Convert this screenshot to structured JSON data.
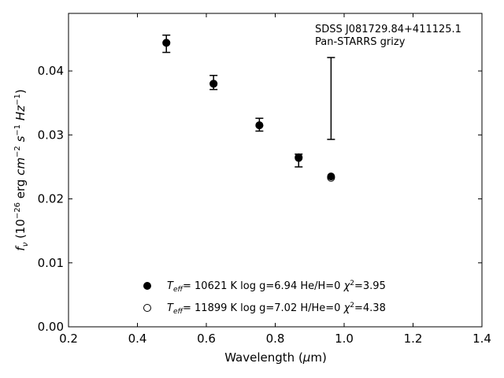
{
  "chart_data": {
    "type": "scatter",
    "title": "",
    "xlabel": "Wavelength (μm)",
    "ylabel": "f_ν (10^−26 erg cm^−2 s^−1 Hz^−1)",
    "xlim": [
      0.2,
      1.4
    ],
    "ylim": [
      0.0,
      0.049
    ],
    "xticks": [
      0.2,
      0.4,
      0.6,
      0.8,
      1.0,
      1.2,
      1.4
    ],
    "xtick_labels": [
      "0.2",
      "0.4",
      "0.6",
      "0.8",
      "1.0",
      "1.2",
      "1.4"
    ],
    "yticks": [
      0.0,
      0.01,
      0.02,
      0.03,
      0.04
    ],
    "ytick_labels": [
      "0.00",
      "0.01",
      "0.02",
      "0.03",
      "0.04"
    ],
    "grid": false,
    "annotation": {
      "line1": "SDSS J081729.84+411125.1",
      "line2": "Pan-STARRS grizy"
    },
    "observed": {
      "x": [
        0.484,
        0.621,
        0.754,
        0.868,
        0.962
      ],
      "y": [
        0.0443,
        0.0382,
        0.0316,
        0.0259,
        0.0357
      ],
      "yerr_low": [
        0.0014,
        0.0011,
        0.001,
        0.0009,
        0.0064
      ],
      "yerr_high": [
        0.0013,
        0.0011,
        0.001,
        0.0011,
        0.0064
      ]
    },
    "series": [
      {
        "name": "T_eff= 10621 K  log g=6.94  He/H=0  χ²=3.95",
        "marker": "filled-circle",
        "color": "#000000",
        "x": [
          0.484,
          0.621,
          0.754,
          0.868,
          0.962
        ],
        "y": [
          0.0444,
          0.038,
          0.0315,
          0.0265,
          0.0235
        ]
      },
      {
        "name": "T_eff= 11899 K  log g=7.02  H/He=0  χ²=4.38",
        "marker": "open-circle",
        "color": "#000000",
        "x": [
          0.484,
          0.621,
          0.754,
          0.868,
          0.962
        ],
        "y": [
          0.0444,
          0.038,
          0.0315,
          0.0264,
          0.0233
        ]
      }
    ],
    "legend_placement": "bottom-center",
    "legend_entries": [
      {
        "prefix": "T",
        "sub": "eff",
        "text1": "= 10621 K  log g=6.94  He/H=0  ",
        "chi": "χ",
        "sup": "2",
        "text2": "=3.95"
      },
      {
        "prefix": "T",
        "sub": "eff",
        "text1": "= 11899 K  log g=7.02  H/He=0  ",
        "chi": "χ",
        "sup": "2",
        "text2": "=4.38"
      }
    ]
  }
}
